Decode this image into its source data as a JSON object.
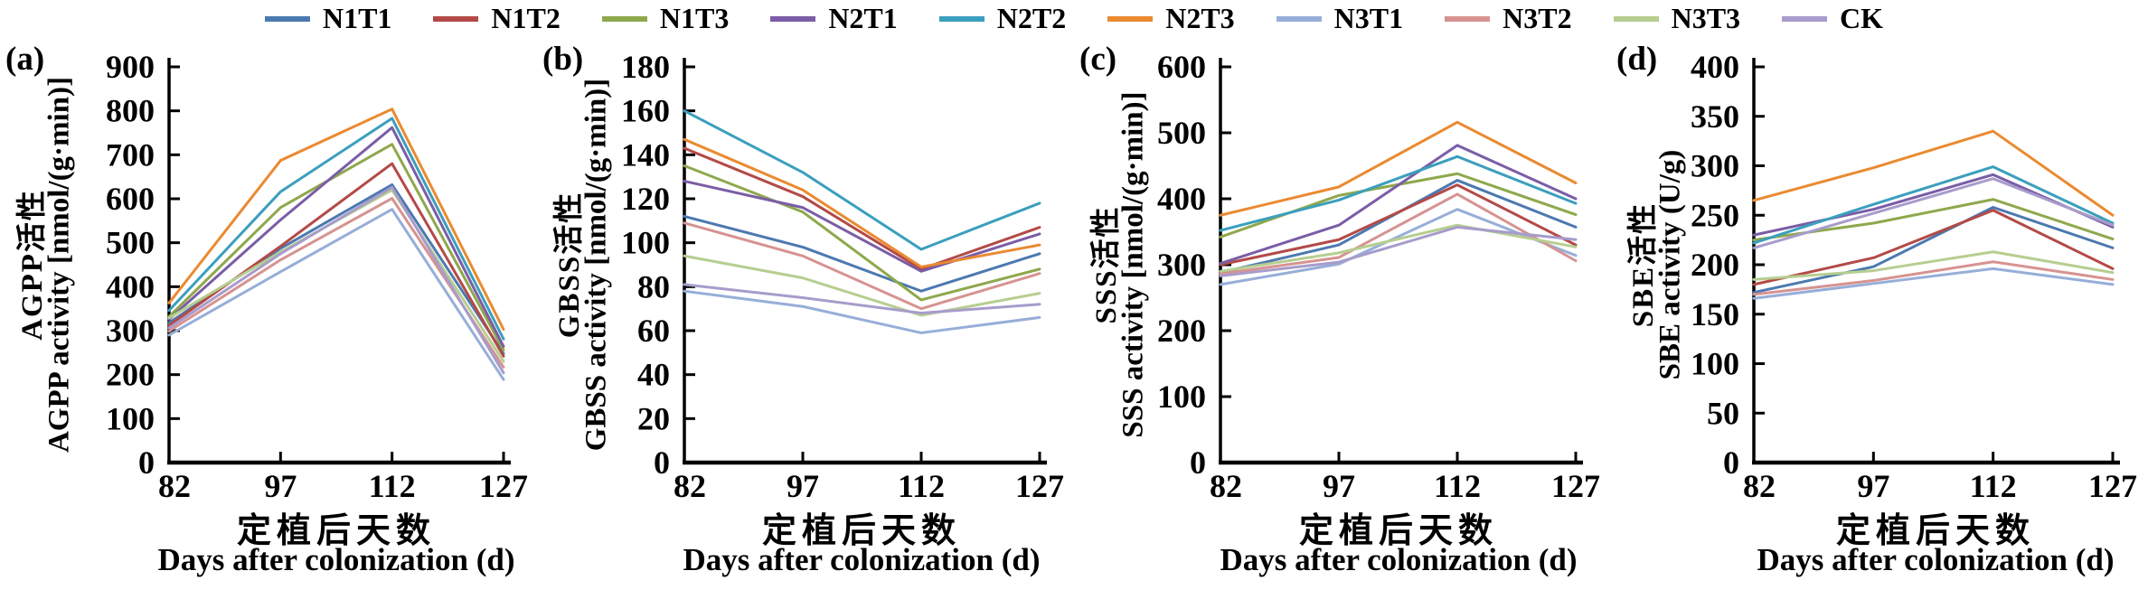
{
  "legend": {
    "items": [
      {
        "label": "N1T1",
        "color": "#4c79b0"
      },
      {
        "label": "N1T2",
        "color": "#b34a47"
      },
      {
        "label": "N1T3",
        "color": "#8ea84c"
      },
      {
        "label": "N2T1",
        "color": "#7a5da6"
      },
      {
        "label": "N2T2",
        "color": "#3b9fbd"
      },
      {
        "label": "N2T3",
        "color": "#ea8a31"
      },
      {
        "label": "N3T1",
        "color": "#96aed8"
      },
      {
        "label": "N3T2",
        "color": "#d69391"
      },
      {
        "label": "N3T3",
        "color": "#b6ce90"
      },
      {
        "label": "CK",
        "color": "#a79ccb"
      }
    ]
  },
  "chart_data": [
    {
      "type": "line",
      "panel_label": "(a)",
      "ylabel_cn": "AGPP活性",
      "ylabel_en": "AGPP activity [nmol/(g·min)]",
      "xlabel_cn": "定植后天数",
      "xlabel_en": "Days after colonization (d)",
      "x": [
        82,
        97,
        112,
        127
      ],
      "ylim": [
        0,
        900
      ],
      "ytick_step": 100,
      "grid": false,
      "legend_position": "top",
      "series": [
        {
          "name": "N1T1",
          "values": [
            318,
            487,
            632,
            248
          ]
        },
        {
          "name": "N1T2",
          "values": [
            312,
            492,
            680,
            242
          ]
        },
        {
          "name": "N1T3",
          "values": [
            332,
            580,
            724,
            256
          ]
        },
        {
          "name": "N2T1",
          "values": [
            326,
            552,
            762,
            264
          ]
        },
        {
          "name": "N2T2",
          "values": [
            346,
            616,
            783,
            281
          ]
        },
        {
          "name": "N2T3",
          "values": [
            363,
            687,
            804,
            303
          ]
        },
        {
          "name": "N3T1",
          "values": [
            290,
            434,
            576,
            189
          ]
        },
        {
          "name": "N3T2",
          "values": [
            299,
            461,
            601,
            217
          ]
        },
        {
          "name": "N3T3",
          "values": [
            329,
            479,
            620,
            230
          ]
        },
        {
          "name": "CK",
          "values": [
            306,
            475,
            626,
            204
          ]
        }
      ]
    },
    {
      "type": "line",
      "panel_label": "(b)",
      "ylabel_cn": "GBSS活性",
      "ylabel_en": "GBSS activity [nmol/(g·min)]",
      "xlabel_cn": "定植后天数",
      "xlabel_en": "Days after colonization (d)",
      "x": [
        82,
        97,
        112,
        127
      ],
      "ylim": [
        0,
        180
      ],
      "ytick_step": 20,
      "grid": false,
      "legend_position": "top",
      "series": [
        {
          "name": "N1T1",
          "values": [
            112,
            98,
            78,
            95
          ]
        },
        {
          "name": "N1T2",
          "values": [
            143,
            121,
            88,
            107
          ]
        },
        {
          "name": "N1T3",
          "values": [
            135,
            114,
            74,
            88
          ]
        },
        {
          "name": "N2T1",
          "values": [
            128,
            116,
            87,
            104
          ]
        },
        {
          "name": "N2T2",
          "values": [
            160,
            132,
            97,
            118
          ]
        },
        {
          "name": "N2T3",
          "values": [
            147,
            124,
            89,
            99
          ]
        },
        {
          "name": "N3T1",
          "values": [
            78,
            71,
            59,
            66
          ]
        },
        {
          "name": "N3T2",
          "values": [
            109,
            94,
            70,
            86
          ]
        },
        {
          "name": "N3T3",
          "values": [
            94,
            84,
            67,
            77
          ]
        },
        {
          "name": "CK",
          "values": [
            81,
            75,
            68,
            72
          ]
        }
      ]
    },
    {
      "type": "line",
      "panel_label": "(c)",
      "ylabel_cn": "SSS活性",
      "ylabel_en": "SSS activity [nmol/(g·min)]",
      "xlabel_cn": "定植后天数",
      "xlabel_en": "Days after colonization (d)",
      "x": [
        82,
        97,
        112,
        127
      ],
      "ylim": [
        0,
        600
      ],
      "ytick_step": 100,
      "grid": false,
      "legend_position": "top",
      "series": [
        {
          "name": "N1T1",
          "values": [
            288,
            330,
            428,
            357
          ]
        },
        {
          "name": "N1T2",
          "values": [
            300,
            338,
            421,
            330
          ]
        },
        {
          "name": "N1T3",
          "values": [
            342,
            405,
            438,
            376
          ]
        },
        {
          "name": "N2T1",
          "values": [
            302,
            360,
            481,
            400
          ]
        },
        {
          "name": "N2T2",
          "values": [
            352,
            398,
            464,
            393
          ]
        },
        {
          "name": "N2T3",
          "values": [
            375,
            418,
            516,
            424
          ]
        },
        {
          "name": "N3T1",
          "values": [
            270,
            301,
            384,
            314
          ]
        },
        {
          "name": "N3T2",
          "values": [
            286,
            311,
            407,
            306
          ]
        },
        {
          "name": "N3T3",
          "values": [
            290,
            318,
            360,
            327
          ]
        },
        {
          "name": "CK",
          "values": [
            283,
            304,
            357,
            338
          ]
        }
      ]
    },
    {
      "type": "line",
      "panel_label": "(d)",
      "ylabel_cn": "SBE活性",
      "ylabel_en": "SBE activity (U/g)",
      "xlabel_cn": "定植后天数",
      "xlabel_en": "Days after colonization (d)",
      "x": [
        82,
        97,
        112,
        127
      ],
      "ylim": [
        0,
        400
      ],
      "ytick_step": 50,
      "grid": false,
      "legend_position": "top",
      "series": [
        {
          "name": "N1T1",
          "values": [
            172,
            198,
            258,
            217
          ]
        },
        {
          "name": "N1T2",
          "values": [
            180,
            207,
            255,
            196
          ]
        },
        {
          "name": "N1T3",
          "values": [
            225,
            242,
            266,
            226
          ]
        },
        {
          "name": "N2T1",
          "values": [
            230,
            256,
            291,
            238
          ]
        },
        {
          "name": "N2T2",
          "values": [
            222,
            261,
            299,
            242
          ]
        },
        {
          "name": "N2T3",
          "values": [
            265,
            298,
            335,
            250
          ]
        },
        {
          "name": "N3T1",
          "values": [
            166,
            181,
            196,
            180
          ]
        },
        {
          "name": "N3T2",
          "values": [
            170,
            184,
            203,
            185
          ]
        },
        {
          "name": "N3T3",
          "values": [
            185,
            194,
            213,
            192
          ]
        },
        {
          "name": "CK",
          "values": [
            217,
            252,
            287,
            240
          ]
        }
      ]
    }
  ]
}
